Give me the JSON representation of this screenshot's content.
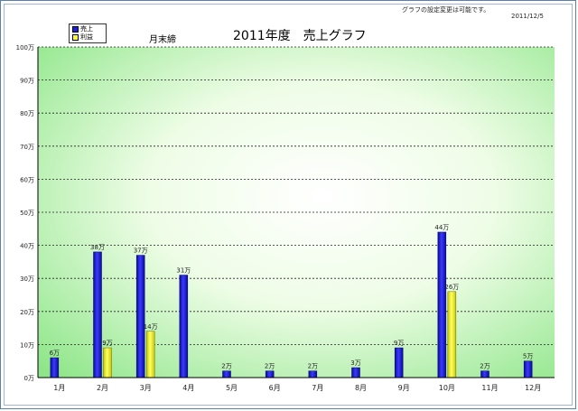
{
  "header": {
    "note": "グラフの設定変更は可能です。",
    "date": "2011/12/5",
    "title": "2011年度　売上グラフ",
    "subtitle": "月末締"
  },
  "legend": [
    {
      "label": "売上",
      "color": "#1f1fd6"
    },
    {
      "label": "利益",
      "color": "#ffff33"
    }
  ],
  "chart_data": {
    "type": "bar",
    "title": "2011年度　売上グラフ",
    "categories": [
      "1月",
      "2月",
      "3月",
      "4月",
      "5月",
      "6月",
      "7月",
      "8月",
      "9月",
      "10月",
      "11月",
      "12月"
    ],
    "series": [
      {
        "name": "売上",
        "color": "#1f1fd6",
        "values": [
          6,
          38,
          37,
          31,
          2,
          2,
          2,
          3,
          9,
          44,
          2,
          5
        ],
        "labels": [
          "6万",
          "38万",
          "37万",
          "31万",
          "2万",
          "2万",
          "2万",
          "3万",
          "9万",
          "44万",
          "2万",
          "5万"
        ]
      },
      {
        "name": "利益",
        "color": "#ffff33",
        "values": [
          null,
          9,
          14,
          null,
          null,
          null,
          null,
          null,
          null,
          26,
          null,
          null
        ],
        "labels": [
          null,
          "9万",
          "14万",
          null,
          null,
          null,
          null,
          null,
          null,
          "26万",
          null,
          null
        ]
      }
    ],
    "ylim": [
      0,
      100
    ],
    "yticks": [
      0,
      10,
      20,
      30,
      40,
      50,
      60,
      70,
      80,
      90,
      100
    ],
    "yticklabels": [
      "0万",
      "10万",
      "20万",
      "30万",
      "40万",
      "50万",
      "60万",
      "70万",
      "80万",
      "90万",
      "100万"
    ],
    "grid": true
  }
}
